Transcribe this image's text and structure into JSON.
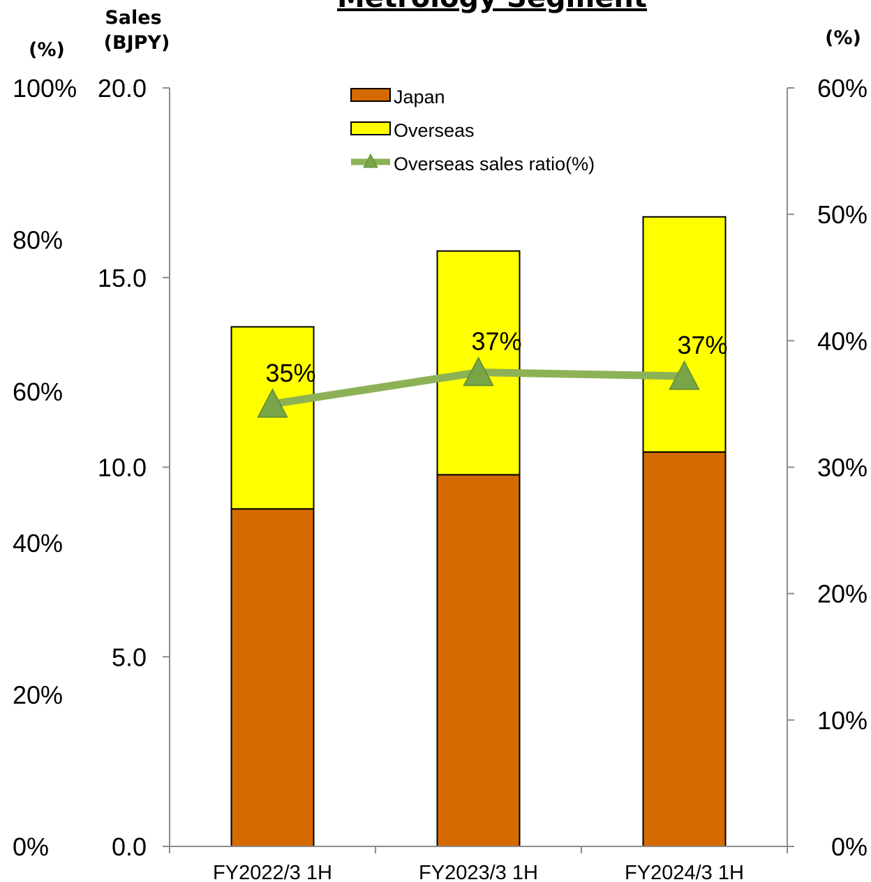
{
  "chart_data": {
    "type": "bar",
    "title": "Metrology Segment",
    "categories": [
      "FY2022/3 1H",
      "FY2023/3 1H",
      "FY2024/3 1H"
    ],
    "series": [
      {
        "name": "Japan",
        "kind": "bar",
        "stack": "sales",
        "color": "#D46A00",
        "values": [
          8.9,
          9.8,
          10.4
        ]
      },
      {
        "name": "Overseas",
        "kind": "bar",
        "stack": "sales",
        "color": "#FFFF00",
        "values": [
          4.8,
          5.9,
          6.2
        ]
      },
      {
        "name": "Overseas sales ratio(%)",
        "kind": "line",
        "axis": "right",
        "color": "#8DB256",
        "marker": "triangle",
        "values": [
          35,
          37.5,
          37.2
        ],
        "labels": [
          "35%",
          "37%",
          "37%"
        ]
      }
    ],
    "y_left": {
      "label_line1": "Sales",
      "label_line2": "(BJPY)",
      "range": [
        0,
        20
      ],
      "ticks": [
        0,
        5,
        10,
        15,
        20
      ],
      "tick_labels": [
        "0.0",
        "5.0",
        "10.0",
        "15.0",
        "20.0"
      ]
    },
    "y_far_left": {
      "label": "(%)",
      "ticks": [
        0,
        20,
        40,
        60,
        80,
        100
      ],
      "tick_labels": [
        "0%",
        "20%",
        "40%",
        "60%",
        "80%",
        "100%"
      ]
    },
    "y_right": {
      "label": "(%)",
      "range": [
        0,
        60
      ],
      "ticks": [
        0,
        10,
        20,
        30,
        40,
        50,
        60
      ],
      "tick_labels": [
        "0%",
        "10%",
        "20%",
        "30%",
        "40%",
        "50%",
        "60%"
      ]
    },
    "legend_position": "top-center",
    "grid": false
  }
}
